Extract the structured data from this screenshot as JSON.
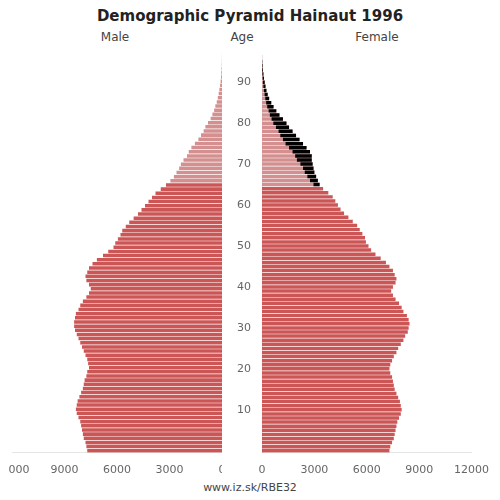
{
  "chart_data": {
    "type": "bar",
    "orientation": "horizontal",
    "title": "Demographic Pyramid Hainaut 1996",
    "y_label": "Age",
    "footer": "www.iz.sk/RBE32",
    "grid": false,
    "xlim": [
      0,
      12000
    ],
    "xticks": [
      0,
      3000,
      6000,
      9000,
      12000
    ],
    "ylim": [
      -0.5,
      96.5
    ],
    "yticks": [
      10,
      20,
      30,
      40,
      50,
      60,
      70,
      80,
      90
    ],
    "y": [
      0,
      1,
      2,
      3,
      4,
      5,
      6,
      7,
      8,
      9,
      10,
      11,
      12,
      13,
      14,
      15,
      16,
      17,
      18,
      19,
      20,
      21,
      22,
      23,
      24,
      25,
      26,
      27,
      28,
      29,
      30,
      31,
      32,
      33,
      34,
      35,
      36,
      37,
      38,
      39,
      40,
      41,
      42,
      43,
      44,
      45,
      46,
      47,
      48,
      49,
      50,
      51,
      52,
      53,
      54,
      55,
      56,
      57,
      58,
      59,
      60,
      61,
      62,
      63,
      64,
      65,
      66,
      67,
      68,
      69,
      70,
      71,
      72,
      73,
      74,
      75,
      76,
      77,
      78,
      79,
      80,
      81,
      82,
      83,
      84,
      85,
      86,
      87,
      88,
      89,
      90,
      91,
      92,
      93,
      94,
      95
    ],
    "series": [
      {
        "name": "Male",
        "colors": [
          "#cc5555",
          "#cc5555",
          "#cc5555",
          "#cc5555",
          "#cc5555",
          "#cc5555",
          "#cc5555",
          "#cc5555",
          "#cc5555",
          "#cc5555",
          "#cc5555",
          "#cc5555",
          "#cc5555",
          "#cc5555",
          "#cc5555",
          "#cc5555",
          "#cc5555",
          "#cc5555",
          "#cc5555",
          "#cc5555",
          "#cc5555",
          "#cc5555",
          "#cc5555",
          "#cc5555",
          "#cc5555",
          "#cc5555",
          "#cc5555",
          "#cc5555",
          "#cc5555",
          "#cc5555",
          "#cc5555",
          "#cc5555",
          "#cc5555",
          "#cc5555",
          "#cc5555",
          "#cc5555",
          "#cc5555",
          "#cc5555",
          "#cc5555",
          "#cc5555",
          "#cc5555",
          "#cc5555",
          "#cc5555",
          "#cc5555",
          "#cc5555",
          "#cc5555",
          "#cc5555",
          "#cc5555",
          "#cc5555",
          "#cc5555",
          "#cc5555",
          "#cc5555",
          "#cc5555",
          "#cc5555",
          "#cc5555",
          "#cc5555",
          "#cc5555",
          "#cc5555",
          "#cc5555",
          "#cc5555",
          "#cc5555",
          "#cc5555",
          "#cc5555",
          "#cc5555",
          "#cc5555",
          "#d49090",
          "#d49090",
          "#d49090",
          "#d49090",
          "#d49090",
          "#d49090",
          "#d49090",
          "#d49090",
          "#d49090",
          "#d49090",
          "#d49090",
          "#d49090",
          "#d49090",
          "#d49090",
          "#d49090",
          "#d49090",
          "#d49090",
          "#d49090",
          "#d49090",
          "#d49090",
          "#d49090",
          "#d49090",
          "#d49090",
          "#d49090",
          "#d49090",
          "#d49090",
          "#d49090",
          "#d49090",
          "#d49090",
          "#d49090",
          "#d49090"
        ],
        "values": [
          7700,
          7750,
          7800,
          7900,
          7950,
          8000,
          8050,
          8100,
          8200,
          8300,
          8350,
          8300,
          8250,
          8150,
          8050,
          7950,
          7900,
          7850,
          7750,
          7700,
          7600,
          7650,
          7700,
          7800,
          7900,
          8000,
          8100,
          8200,
          8300,
          8400,
          8450,
          8450,
          8400,
          8350,
          8200,
          8100,
          7950,
          7750,
          7600,
          7500,
          7600,
          7750,
          7800,
          7700,
          7600,
          7400,
          7150,
          6800,
          6500,
          6200,
          6100,
          5950,
          5800,
          5700,
          5500,
          5300,
          5050,
          4800,
          4600,
          4400,
          4200,
          4000,
          3800,
          3500,
          3200,
          2950,
          2750,
          2600,
          2450,
          2350,
          2200,
          2000,
          1900,
          1750,
          1550,
          1350,
          1200,
          1050,
          950,
          800,
          650,
          550,
          450,
          380,
          300,
          240,
          190,
          150,
          110,
          80,
          55,
          40,
          25,
          15,
          8,
          4
        ]
      },
      {
        "name": "Female",
        "colors": [
          "#cc5555",
          "#cc5555",
          "#cc5555",
          "#cc5555",
          "#cc5555",
          "#cc5555",
          "#cc5555",
          "#cc5555",
          "#cc5555",
          "#cc5555",
          "#cc5555",
          "#cc5555",
          "#cc5555",
          "#cc5555",
          "#cc5555",
          "#cc5555",
          "#cc5555",
          "#cc5555",
          "#cc5555",
          "#cc5555",
          "#cc5555",
          "#cc5555",
          "#cc5555",
          "#cc5555",
          "#cc5555",
          "#cc5555",
          "#cc5555",
          "#cc5555",
          "#cc5555",
          "#cc5555",
          "#cc5555",
          "#cc5555",
          "#cc5555",
          "#cc5555",
          "#cc5555",
          "#cc5555",
          "#cc5555",
          "#cc5555",
          "#cc5555",
          "#cc5555",
          "#cc5555",
          "#cc5555",
          "#cc5555",
          "#cc5555",
          "#cc5555",
          "#cc5555",
          "#cc5555",
          "#cc5555",
          "#cc5555",
          "#cc5555",
          "#cc5555",
          "#cc5555",
          "#cc5555",
          "#cc5555",
          "#cc5555",
          "#cc5555",
          "#cc5555",
          "#cc5555",
          "#cc5555",
          "#cc5555",
          "#cc5555",
          "#cc5555",
          "#cc5555",
          "#cc5555",
          "#cc5555",
          "#d49090",
          "#d49090",
          "#d49090",
          "#d49090",
          "#d49090",
          "#d49090",
          "#d49090",
          "#d49090",
          "#d49090",
          "#d49090",
          "#d49090",
          "#d49090",
          "#d49090",
          "#d49090",
          "#d49090",
          "#d49090",
          "#d49090",
          "#d49090",
          "#d49090",
          "#d49090",
          "#d49090",
          "#d49090",
          "#d49090",
          "#d49090",
          "#d49090",
          "#d49090",
          "#d49090",
          "#d49090",
          "#d49090",
          "#d49090",
          "#d49090"
        ],
        "values": [
          7300,
          7350,
          7450,
          7550,
          7600,
          7650,
          7700,
          7750,
          7850,
          7950,
          8000,
          7950,
          7900,
          7800,
          7700,
          7600,
          7550,
          7500,
          7450,
          7350,
          7300,
          7350,
          7450,
          7550,
          7700,
          7800,
          7950,
          8100,
          8200,
          8350,
          8400,
          8450,
          8400,
          8300,
          8100,
          8000,
          7850,
          7650,
          7500,
          7400,
          7500,
          7650,
          7700,
          7600,
          7500,
          7300,
          7100,
          6800,
          6500,
          6250,
          6100,
          5950,
          5900,
          5750,
          5600,
          5450,
          5200,
          4950,
          4700,
          4500,
          4350,
          4200,
          4050,
          3800,
          3500,
          3300,
          3200,
          3100,
          3000,
          2950,
          2900,
          2850,
          2850,
          2750,
          2550,
          2350,
          2150,
          1950,
          1750,
          1550,
          1400,
          1200,
          1000,
          820,
          660,
          530,
          410,
          325,
          255,
          200,
          155,
          115,
          82,
          57,
          36,
          16
        ]
      },
      {
        "color": "#000000",
        "values": [
          null,
          null,
          null,
          null,
          null,
          null,
          null,
          null,
          null,
          null,
          null,
          null,
          null,
          null,
          null,
          null,
          null,
          null,
          null,
          null,
          null,
          null,
          null,
          null,
          null,
          null,
          null,
          null,
          null,
          null,
          null,
          null,
          null,
          null,
          null,
          null,
          null,
          null,
          null,
          null,
          null,
          null,
          null,
          null,
          null,
          null,
          null,
          null,
          null,
          null,
          null,
          null,
          null,
          null,
          null,
          null,
          null,
          null,
          null,
          null,
          null,
          null,
          null,
          null,
          null,
          [
            2950,
            3300
          ],
          [
            2750,
            3200
          ],
          [
            2600,
            3100
          ],
          [
            2450,
            3000
          ],
          [
            2350,
            2950
          ],
          [
            2200,
            2900
          ],
          [
            2000,
            2850
          ],
          [
            1900,
            2850
          ],
          [
            1750,
            2750
          ],
          [
            1550,
            2550
          ],
          [
            1350,
            2350
          ],
          [
            1200,
            2150
          ],
          [
            1050,
            1950
          ],
          [
            950,
            1750
          ],
          [
            800,
            1550
          ],
          [
            650,
            1400
          ],
          [
            550,
            1200
          ],
          [
            450,
            1000
          ],
          [
            380,
            820
          ],
          [
            300,
            660
          ],
          [
            240,
            530
          ],
          [
            190,
            410
          ],
          [
            150,
            325
          ],
          [
            110,
            255
          ],
          [
            80,
            200
          ],
          [
            55,
            155
          ],
          [
            40,
            115
          ],
          [
            25,
            82
          ],
          [
            15,
            57
          ],
          [
            8,
            36
          ],
          [
            4,
            16
          ]
        ]
      }
    ]
  }
}
